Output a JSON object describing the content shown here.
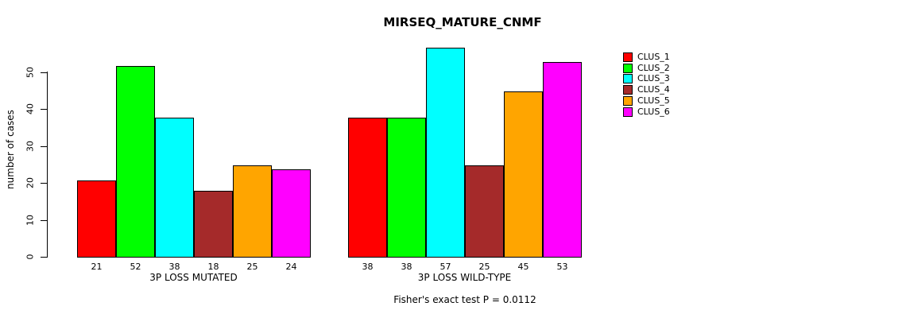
{
  "chart_data": {
    "type": "bar",
    "title": "MIRSEQ_MATURE_CNMF",
    "ylabel": "number of cases",
    "xlabel": "",
    "categories": [
      "3P LOSS MUTATED",
      "3P LOSS WILD-TYPE"
    ],
    "series": [
      {
        "name": "CLUS_1",
        "color": "#ff0000",
        "values": [
          21,
          38
        ]
      },
      {
        "name": "CLUS_2",
        "color": "#00ff00",
        "values": [
          52,
          38
        ]
      },
      {
        "name": "CLUS_3",
        "color": "#00ffff",
        "values": [
          38,
          57
        ]
      },
      {
        "name": "CLUS_4",
        "color": "#a52a2a",
        "values": [
          18,
          25
        ]
      },
      {
        "name": "CLUS_5",
        "color": "#ffa500",
        "values": [
          25,
          45
        ]
      },
      {
        "name": "CLUS_6",
        "color": "#ff00ff",
        "values": [
          24,
          53
        ]
      }
    ],
    "yticks": [
      0,
      10,
      20,
      30,
      40,
      50
    ],
    "ylim": [
      0,
      57.5
    ],
    "grid": false,
    "bar_value_labels": true,
    "legend_position": "right",
    "annotation": "Fisher's exact test P = 0.0112"
  }
}
